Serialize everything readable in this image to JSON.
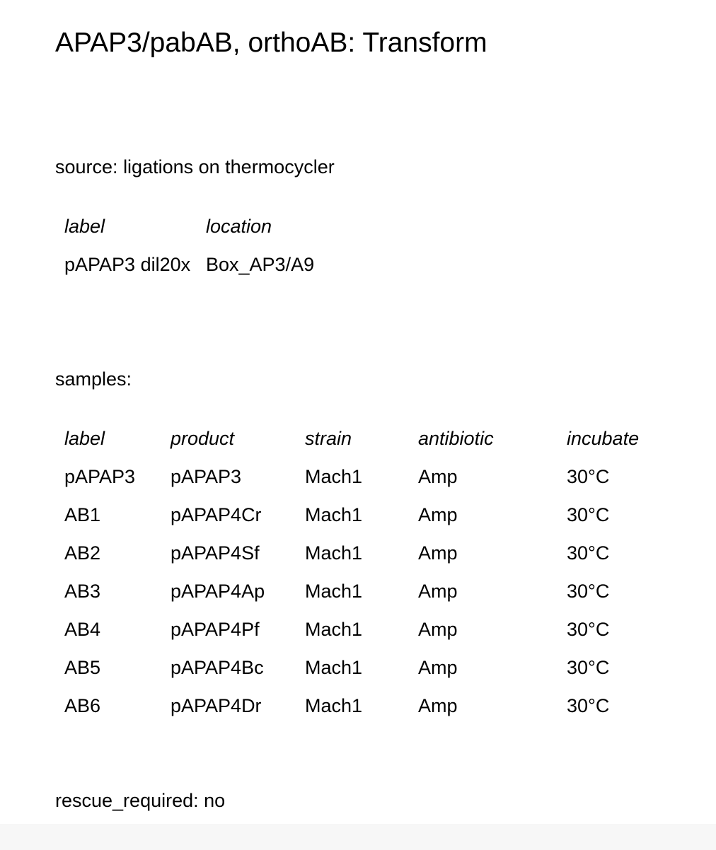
{
  "title": "APAP3/pabAB, orthoAB: Transform",
  "source": {
    "key": "source:",
    "value": "ligations on thermocycler",
    "headers": [
      "label",
      "location"
    ],
    "rows": [
      [
        "pAPAP3 dil20x",
        "Box_AP3/A9"
      ]
    ]
  },
  "samples": {
    "key": "samples:",
    "headers": [
      "label",
      "product",
      "strain",
      "antibiotic",
      "incubate"
    ],
    "rows": [
      [
        "pAPAP3",
        "pAPAP3",
        "Mach1",
        "Amp",
        "30°C"
      ],
      [
        "AB1",
        "pAPAP4Cr",
        "Mach1",
        "Amp",
        "30°C"
      ],
      [
        "AB2",
        "pAPAP4Sf",
        "Mach1",
        "Amp",
        "30°C"
      ],
      [
        "AB3",
        "pAPAP4Ap",
        "Mach1",
        "Amp",
        "30°C"
      ],
      [
        "AB4",
        "pAPAP4Pf",
        "Mach1",
        "Amp",
        "30°C"
      ],
      [
        "AB5",
        "pAPAP4Bc",
        "Mach1",
        "Amp",
        "30°C"
      ],
      [
        "AB6",
        "pAPAP4Dr",
        "Mach1",
        "Amp",
        "30°C"
      ]
    ]
  },
  "rescue": {
    "text": "rescue_required: no"
  }
}
